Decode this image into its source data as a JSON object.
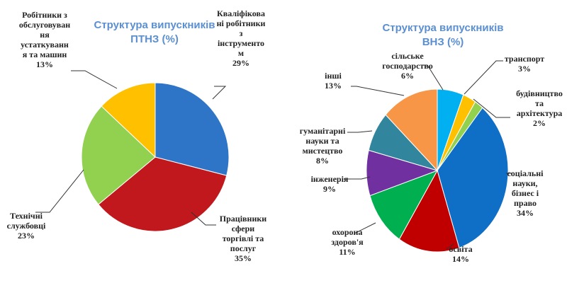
{
  "chart_data": [
    {
      "type": "pie",
      "title": "Структура випускників ПТНЗ (%)",
      "title_lines": [
        "Структура випускників",
        "ПТНЗ (%)"
      ],
      "unit": "%",
      "slices": [
        {
          "label": "Кваліфіковані робітники з інструментом",
          "label_display": "Кваліфікова\nні робітники\nз\nінструменто\nм",
          "value": 29,
          "color": "#2e75c8"
        },
        {
          "label": "Працівники сфери торгівлі та послуг",
          "label_display": "Працівники\nсфери\nторгівлі та\nпослуг",
          "value": 35,
          "color": "#c0181c"
        },
        {
          "label": "Технічні службовці",
          "label_display": "Технічні\nслужбовці",
          "value": 23,
          "color": "#92d050"
        },
        {
          "label": "Робітники з обслуговування устаткування та машин",
          "label_display": "Робітники з\nобслуговуван\nня\nустаткуванн\nя та машин",
          "value": 13,
          "color": "#ffc000"
        }
      ]
    },
    {
      "type": "pie",
      "title": "Структура випускників ВНЗ (%)",
      "title_lines": [
        "Структура випускників",
        "ВНЗ (%)"
      ],
      "unit": "%",
      "slices": [
        {
          "label": "сільське господарство",
          "label_display": "сільське\nгосподарство",
          "value": 6,
          "color": "#00b0f0"
        },
        {
          "label": "транспорт",
          "label_display": "транспорт",
          "value": 3,
          "color": "#ffc000"
        },
        {
          "label": "будівництво та архітектура",
          "label_display": "будівництво\nта\nархітектура",
          "value": 2,
          "color": "#92d050"
        },
        {
          "label": "соціальні науки, бізнес і право",
          "label_display": "соціальні\nнауки,\nбізнес і\nправо",
          "value": 34,
          "color": "#0f6fc6"
        },
        {
          "label": "освіта",
          "label_display": "освіта",
          "value": 14,
          "color": "#c00000"
        },
        {
          "label": "охорона здоров'я",
          "label_display": "охорона\nздоров'я",
          "value": 11,
          "color": "#00b050"
        },
        {
          "label": "інженерія",
          "label_display": "інженерія",
          "value": 9,
          "color": "#7030a0"
        },
        {
          "label": "гуманітарні науки та мистецтво",
          "label_display": "гуманітарні\nнауки та\nмистецтво",
          "value": 8,
          "color": "#31859c"
        },
        {
          "label": "інші",
          "label_display": "інші",
          "value": 13,
          "color": "#f79646"
        }
      ]
    }
  ]
}
